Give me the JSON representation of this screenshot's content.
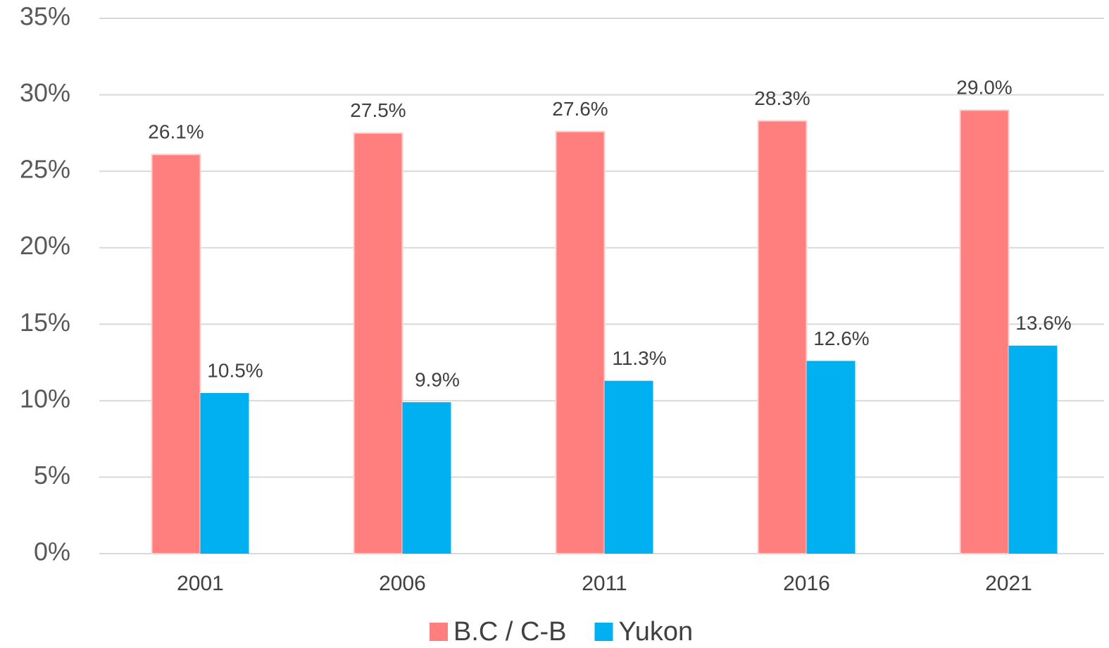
{
  "chart_data": {
    "type": "bar",
    "categories": [
      "2001",
      "2006",
      "2011",
      "2016",
      "2021"
    ],
    "series": [
      {
        "name": "B.C / C-B",
        "color": "#ff7f7f",
        "values": [
          26.1,
          27.5,
          27.6,
          28.3,
          29.0
        ],
        "value_labels": [
          "26.1%",
          "27.5%",
          "27.6%",
          "28.3%",
          "29.0%"
        ]
      },
      {
        "name": "Yukon",
        "color": "#00b0f0",
        "values": [
          10.5,
          9.9,
          11.3,
          12.6,
          13.6
        ],
        "value_labels": [
          "10.5%",
          "9.9%",
          "11.3%",
          "12.6%",
          "13.6%"
        ]
      }
    ],
    "ylim": [
      0,
      35
    ],
    "yticks": [
      {
        "value": 0,
        "label": "0%"
      },
      {
        "value": 5,
        "label": "5%"
      },
      {
        "value": 10,
        "label": "10%"
      },
      {
        "value": 15,
        "label": "15%"
      },
      {
        "value": 20,
        "label": "20%"
      },
      {
        "value": 25,
        "label": "25%"
      },
      {
        "value": 30,
        "label": "30%"
      },
      {
        "value": 35,
        "label": "35%"
      }
    ],
    "grid": true,
    "legend": "bottom"
  }
}
